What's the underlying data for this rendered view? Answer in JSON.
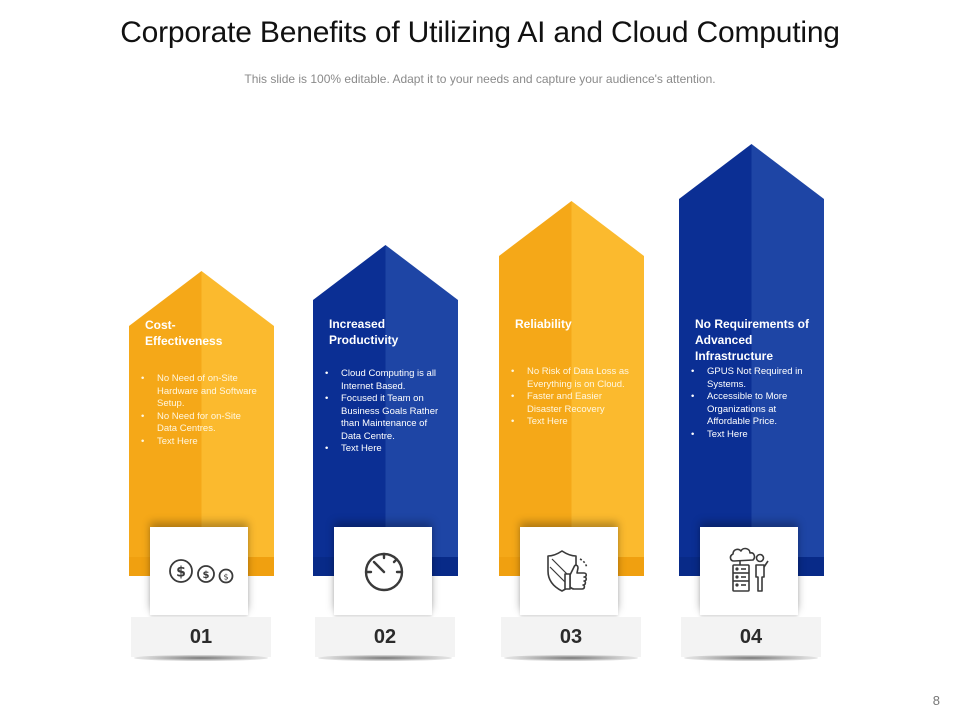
{
  "slide": {
    "title": "Corporate Benefits of Utilizing AI and Cloud Computing",
    "subtitle": "This slide is 100% editable. Adapt it to your needs and capture your audience's attention.",
    "page_number": "8"
  },
  "colors": {
    "yellow_light": "#FBBA2E",
    "yellow_dark": "#F5A818",
    "blue_light": "#1E45A5",
    "blue_dark": "#0B2F94",
    "icon_stroke": "#3A3A3A"
  },
  "cards": [
    {
      "title": "Cost-\nEffectiveness",
      "number": "01",
      "icon": "dollar-coins-icon",
      "color": "yellow",
      "bullets": [
        "No Need of on-Site Hardware and Software Setup.",
        "No Need for on-Site Data Centres.",
        "Text Here"
      ]
    },
    {
      "title": "Increased Productivity",
      "number": "02",
      "icon": "speedometer-icon",
      "color": "blue",
      "bullets": [
        "Cloud Computing is all Internet Based.",
        "Focused it Team on Business Goals Rather than Maintenance of Data Centre.",
        "Text Here"
      ]
    },
    {
      "title": "Reliability",
      "number": "03",
      "icon": "shield-thumbs-up-icon",
      "color": "yellow",
      "bullets": [
        "No Risk of Data Loss as Everything is on Cloud.",
        "Faster and Easier Disaster Recovery",
        "Text Here"
      ]
    },
    {
      "title": "No Requirements of Advanced Infrastructure",
      "number": "04",
      "icon": "cloud-server-person-icon",
      "color": "blue",
      "bullets": [
        "GPUS Not Required in Systems.",
        "Accessible to More Organizations at Affordable Price.",
        "Text Here"
      ]
    }
  ]
}
